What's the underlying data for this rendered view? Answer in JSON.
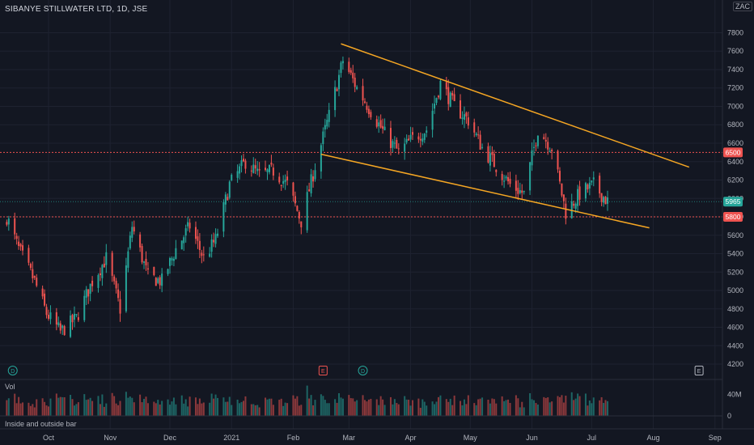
{
  "header": {
    "title": "SIBANYE STILLWATER LTD, 1D, JSE",
    "currency": "ZAC"
  },
  "panes": {
    "volume_label": "Vol",
    "indicator_label": "Inside and outside bar"
  },
  "colors": {
    "background": "#131722",
    "up": "#26a69a",
    "down": "#ef5350",
    "trendline": "#f5a623",
    "level_line": "#ef5350",
    "grid": "#1e2230"
  },
  "chart_data": {
    "type": "candlestick",
    "title": "SIBANYE STILLWATER LTD, 1D, JSE",
    "y_ticks": [
      4200,
      4400,
      4600,
      4800,
      5000,
      5200,
      5400,
      5600,
      5800,
      6000,
      6200,
      6400,
      6600,
      6800,
      7000,
      7200,
      7400,
      7600,
      7800
    ],
    "ylim": [
      4130,
      7980
    ],
    "x_ticks": [
      "Oct",
      "Nov",
      "Dec",
      "2021",
      "Feb",
      "Mar",
      "Apr",
      "May",
      "Jun",
      "Jul",
      "Aug",
      "Sep"
    ],
    "price_labels": [
      {
        "value": 6500,
        "text": "6500",
        "color": "#ef5350"
      },
      {
        "value": 5965,
        "text": "5965",
        "color": "#26a69a"
      },
      {
        "value": 5800,
        "text": "5800",
        "color": "#ef5350"
      }
    ],
    "horizontal_levels": [
      6500,
      5800
    ],
    "trendlines": [
      {
        "from": {
          "date": "2021-02-25",
          "value": 7680
        },
        "to": {
          "date": "2021-08-19",
          "value": 6340
        }
      },
      {
        "from": {
          "date": "2021-02-15",
          "value": 6480
        },
        "to": {
          "date": "2021-07-30",
          "value": 5680
        }
      }
    ],
    "close_anchors": [
      [
        "2020-09-10",
        5800
      ],
      [
        "2020-09-16",
        5450
      ],
      [
        "2020-09-24",
        5100
      ],
      [
        "2020-09-30",
        4750
      ],
      [
        "2020-10-07",
        4550
      ],
      [
        "2020-10-15",
        4700
      ],
      [
        "2020-10-23",
        5100
      ],
      [
        "2020-10-30",
        5350
      ],
      [
        "2020-11-06",
        4800
      ],
      [
        "2020-11-12",
        5700
      ],
      [
        "2020-11-20",
        5150
      ],
      [
        "2020-11-27",
        5100
      ],
      [
        "2020-12-04",
        5450
      ],
      [
        "2020-12-11",
        5700
      ],
      [
        "2020-12-18",
        5350
      ],
      [
        "2020-12-24",
        5550
      ],
      [
        "2020-12-31",
        6150
      ],
      [
        "2021-01-08",
        6400
      ],
      [
        "2021-01-15",
        6250
      ],
      [
        "2021-01-22",
        6300
      ],
      [
        "2021-01-29",
        6150
      ],
      [
        "2021-02-05",
        5750
      ],
      [
        "2021-02-12",
        6350
      ],
      [
        "2021-02-19",
        6900
      ],
      [
        "2021-02-26",
        7500
      ],
      [
        "2021-03-05",
        7200
      ],
      [
        "2021-03-12",
        6950
      ],
      [
        "2021-03-19",
        6700
      ],
      [
        "2021-03-26",
        6500
      ],
      [
        "2021-04-02",
        6650
      ],
      [
        "2021-04-09",
        6750
      ],
      [
        "2021-04-16",
        7250
      ],
      [
        "2021-04-23",
        7000
      ],
      [
        "2021-04-30",
        6850
      ],
      [
        "2021-05-07",
        6550
      ],
      [
        "2021-05-14",
        6350
      ],
      [
        "2021-05-21",
        6150
      ],
      [
        "2021-05-28",
        6050
      ],
      [
        "2021-06-04",
        6750
      ],
      [
        "2021-06-11",
        6550
      ],
      [
        "2021-06-18",
        5850
      ],
      [
        "2021-06-25",
        6050
      ],
      [
        "2021-07-02",
        6150
      ],
      [
        "2021-07-09",
        5965
      ]
    ],
    "volume": {
      "label": "Vol",
      "ticks": [
        0,
        40000000
      ],
      "tick_labels": [
        "0",
        "40M"
      ]
    },
    "events": [
      {
        "date": "2020-09-13",
        "label": "D",
        "kind": "dividend"
      },
      {
        "date": "2021-02-16",
        "label": "E",
        "kind": "earnings"
      },
      {
        "date": "2021-03-08",
        "label": "D",
        "kind": "dividend"
      },
      {
        "date": "2021-08-24",
        "label": "E",
        "kind": "earnings"
      }
    ]
  }
}
